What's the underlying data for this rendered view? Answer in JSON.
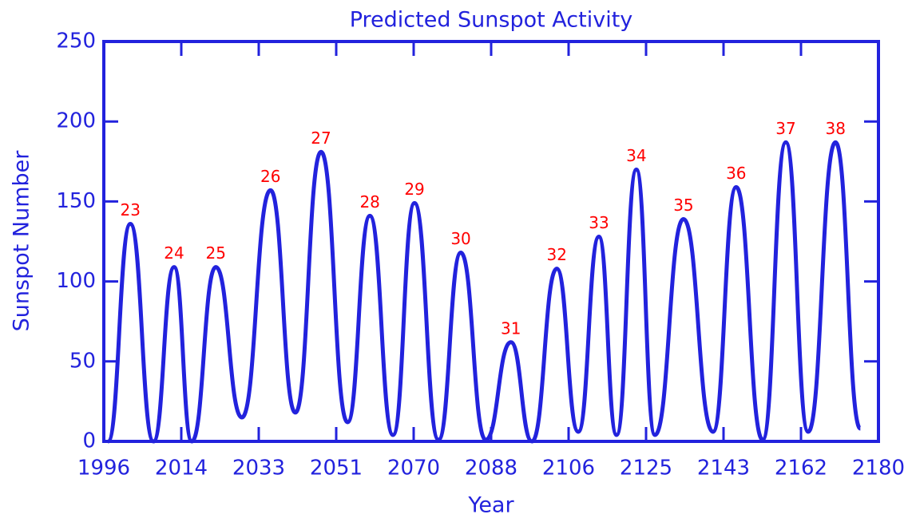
{
  "chart_data": {
    "type": "line",
    "title": "Predicted Sunspot Activity",
    "x_label": "Year",
    "y_label": "Sunspot Number",
    "color": "#2222dd",
    "label_color": "#ff0000",
    "x": [
      1997,
      2002.3,
      2007.8,
      2012.7,
      2016.9,
      2022.6,
      2028.8,
      2035.6,
      2041.5,
      2047.6,
      2053.9,
      2059.2,
      2064.7,
      2069.8,
      2075.5,
      2080.8,
      2086.7,
      2092.7,
      2097.7,
      2103.6,
      2108.7,
      2113.6,
      2117.8,
      2122.5,
      2126.9,
      2133.7,
      2140.7,
      2146.2,
      2152.5,
      2158,
      2163.3,
      2169.8,
      2175.7
    ],
    "values": [
      0,
      136,
      0,
      109,
      0,
      109,
      15,
      157,
      18,
      181,
      12,
      141,
      4,
      149,
      1,
      118,
      1,
      62,
      0,
      108,
      6,
      128,
      4,
      170,
      4,
      139,
      6,
      159,
      1,
      187,
      6,
      187,
      8
    ],
    "annotations": [
      {
        "text": "23",
        "x": 2002.3,
        "y": 136
      },
      {
        "text": "24",
        "x": 2012.7,
        "y": 109
      },
      {
        "text": "25",
        "x": 2022.6,
        "y": 109
      },
      {
        "text": "26",
        "x": 2035.6,
        "y": 157
      },
      {
        "text": "27",
        "x": 2047.6,
        "y": 181
      },
      {
        "text": "28",
        "x": 2059.2,
        "y": 141
      },
      {
        "text": "29",
        "x": 2069.8,
        "y": 149
      },
      {
        "text": "30",
        "x": 2080.8,
        "y": 118
      },
      {
        "text": "31",
        "x": 2092.7,
        "y": 62
      },
      {
        "text": "32",
        "x": 2103.6,
        "y": 108
      },
      {
        "text": "33",
        "x": 2113.6,
        "y": 128
      },
      {
        "text": "34",
        "x": 2122.5,
        "y": 170
      },
      {
        "text": "35",
        "x": 2133.7,
        "y": 139
      },
      {
        "text": "36",
        "x": 2146.2,
        "y": 159
      },
      {
        "text": "37",
        "x": 2158,
        "y": 187
      },
      {
        "text": "38",
        "x": 2169.8,
        "y": 187
      }
    ],
    "xlim": [
      1996,
      2180
    ],
    "xticks": [
      1996,
      {
        "value": 2014.4,
        "label": "2014"
      },
      {
        "value": 2032.8,
        "label": "2033"
      },
      {
        "value": 2051.2,
        "label": "2051"
      },
      {
        "value": 2069.6,
        "label": "2070"
      },
      2088,
      {
        "value": 2106.4,
        "label": "2106"
      },
      {
        "value": 2124.8,
        "label": "2125"
      },
      {
        "value": 2143.2,
        "label": "2143"
      },
      {
        "value": 2161.6,
        "label": "2162"
      },
      2180
    ],
    "ylim": [
      0,
      250
    ],
    "yticks": [
      0,
      50,
      100,
      150,
      200,
      250
    ]
  }
}
